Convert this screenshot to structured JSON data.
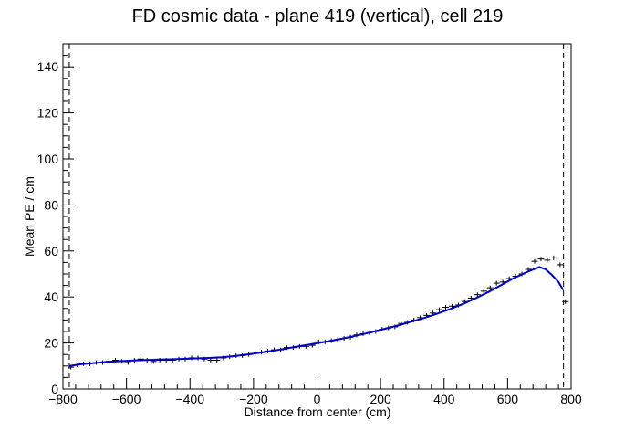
{
  "chart_data": {
    "type": "scatter",
    "title": "FD cosmic data - plane 419 (vertical), cell 219",
    "xlabel": "Distance from center (cm)",
    "ylabel": "Mean PE / cm",
    "xlim": [
      -800,
      800
    ],
    "ylim": [
      0,
      150
    ],
    "xticks": [
      -800,
      -600,
      -400,
      -200,
      0,
      200,
      400,
      600,
      800
    ],
    "yticks": [
      0,
      20,
      40,
      60,
      80,
      100,
      120,
      140
    ],
    "vlines": [
      -780,
      776
    ],
    "colors": {
      "points": "#000000",
      "fit": "#0000cc"
    },
    "series": [
      {
        "type": "scatter-errorbars",
        "x": [
          -775,
          -755,
          -735,
          -715,
          -695,
          -675,
          -655,
          -635,
          -615,
          -595,
          -575,
          -555,
          -535,
          -515,
          -495,
          -475,
          -455,
          -435,
          -415,
          -395,
          -375,
          -355,
          -335,
          -315,
          -295,
          -275,
          -255,
          -235,
          -215,
          -195,
          -175,
          -155,
          -135,
          -115,
          -95,
          -75,
          -55,
          -35,
          -15,
          5,
          25,
          45,
          65,
          85,
          105,
          125,
          145,
          165,
          185,
          205,
          225,
          245,
          265,
          285,
          305,
          325,
          345,
          365,
          385,
          405,
          425,
          445,
          465,
          485,
          505,
          525,
          545,
          565,
          585,
          605,
          625,
          645,
          665,
          685,
          705,
          725,
          745,
          765,
          782
        ],
        "y": [
          9.5,
          10.5,
          11.0,
          11.0,
          11.5,
          11.5,
          12.0,
          12.5,
          12.0,
          11.5,
          12.5,
          13.0,
          12.5,
          12.0,
          12.5,
          12.5,
          12.5,
          13.0,
          13.0,
          13.5,
          13.5,
          13.0,
          12.5,
          12.5,
          13.5,
          14.0,
          14.5,
          14.5,
          15.0,
          15.5,
          16.0,
          16.5,
          17.0,
          17.0,
          18.0,
          18.0,
          18.5,
          18.5,
          19.0,
          20.5,
          20.5,
          21.0,
          21.5,
          22.0,
          22.5,
          23.5,
          24.0,
          24.5,
          25.0,
          26.0,
          26.5,
          27.0,
          28.5,
          29.0,
          30.0,
          31.0,
          32.0,
          33.0,
          34.5,
          35.5,
          36.0,
          36.5,
          38.0,
          39.5,
          41.0,
          42.5,
          44.0,
          46.0,
          46.5,
          48.0,
          49.0,
          50.0,
          52.0,
          55.5,
          56.5,
          56.0,
          57.0,
          54.0,
          38.0
        ]
      },
      {
        "type": "fit-line",
        "x": [
          -780,
          -740,
          -700,
          -660,
          -620,
          -580,
          -540,
          -500,
          -460,
          -420,
          -380,
          -340,
          -300,
          -260,
          -220,
          -180,
          -140,
          -100,
          -60,
          -20,
          20,
          60,
          100,
          140,
          180,
          220,
          260,
          300,
          340,
          380,
          420,
          460,
          500,
          540,
          580,
          620,
          660,
          700,
          720,
          740,
          760,
          775
        ],
        "y": [
          10.0,
          10.8,
          11.3,
          11.8,
          12.1,
          12.4,
          12.6,
          12.8,
          12.9,
          13.1,
          13.3,
          13.5,
          13.8,
          14.3,
          15.0,
          15.8,
          16.6,
          17.5,
          18.5,
          19.4,
          20.4,
          21.4,
          22.5,
          23.7,
          25.0,
          26.4,
          27.8,
          29.4,
          31.0,
          32.8,
          34.8,
          37.0,
          39.5,
          42.2,
          45.2,
          48.2,
          50.8,
          53.0,
          52.0,
          49.5,
          46.5,
          43.0
        ]
      }
    ]
  }
}
